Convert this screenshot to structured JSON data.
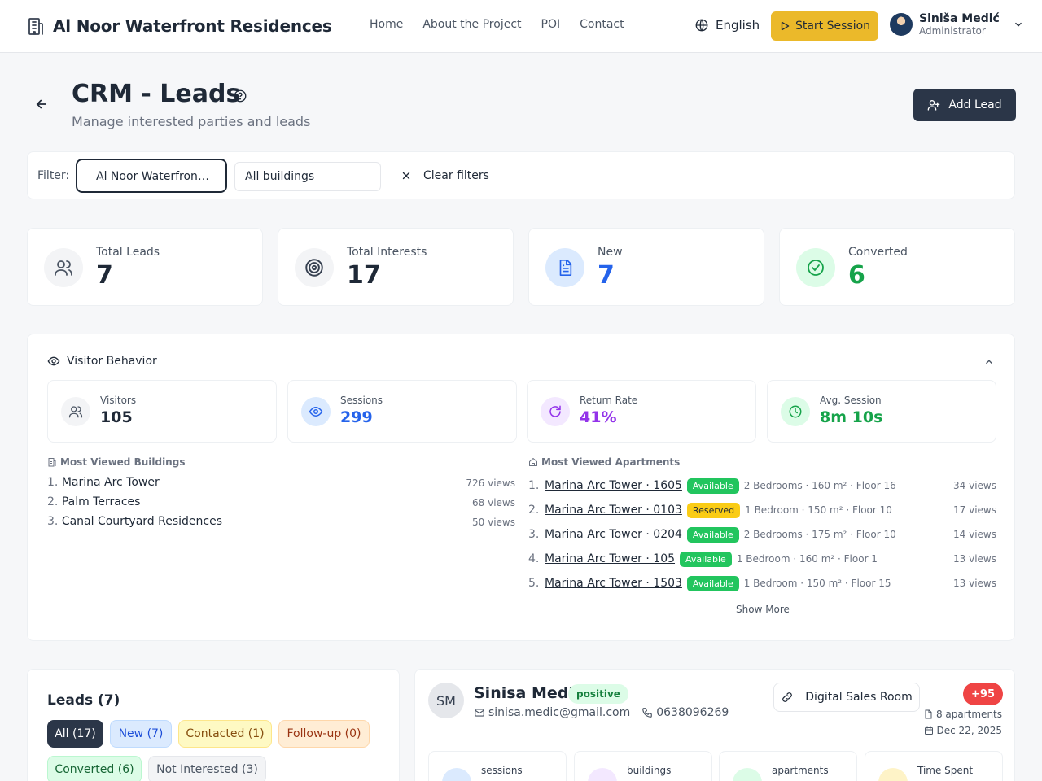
{
  "header": {
    "title": "Al Noor Waterfront Residences",
    "nav": [
      "Home",
      "About the Project",
      "POI",
      "Contact"
    ],
    "language": "English",
    "start_session": "Start Session",
    "user_name": "Siniša Medić",
    "user_role": "Administrator"
  },
  "page": {
    "title": "CRM - Leads",
    "subtitle": "Manage interested parties and leads",
    "add_lead": "Add Lead"
  },
  "filter": {
    "label": "Filter:",
    "project": "Al Noor Waterfront Residences",
    "buildings": "All buildings",
    "clear": "Clear filters"
  },
  "stats": [
    {
      "label": "Total Leads",
      "value": "7",
      "color": "#1f2937"
    },
    {
      "label": "Total Interests",
      "value": "17",
      "color": "#1f2937"
    },
    {
      "label": "New",
      "value": "7",
      "color": "#2563eb"
    },
    {
      "label": "Converted",
      "value": "6",
      "color": "#16a34a"
    }
  ],
  "visitor_behavior": {
    "title": "Visitor Behavior",
    "metrics": [
      {
        "label": "Visitors",
        "value": "105",
        "color": "#1f2937"
      },
      {
        "label": "Sessions",
        "value": "299",
        "color": "#2563eb"
      },
      {
        "label": "Return Rate",
        "value": "41%",
        "color": "#9333ea"
      },
      {
        "label": "Avg. Session",
        "value": "8m 10s",
        "color": "#16a34a"
      }
    ],
    "buildings_title": "Most Viewed Buildings",
    "buildings": [
      {
        "n": "1.",
        "name": "Marina Arc Tower",
        "views": "726 views"
      },
      {
        "n": "2.",
        "name": "Palm Terraces",
        "views": "68 views"
      },
      {
        "n": "3.",
        "name": "Canal Courtyard Residences",
        "views": "50 views"
      }
    ],
    "apartments_title": "Most Viewed Apartments",
    "apartments": [
      {
        "n": "1.",
        "name": "Marina Arc Tower · 1605",
        "status": "Available",
        "detail": "2 Bedrooms · 160 m² · Floor 16",
        "views": "34 views"
      },
      {
        "n": "2.",
        "name": "Marina Arc Tower · 0103",
        "status": "Reserved",
        "detail": "1 Bedroom · 150 m² · Floor 10",
        "views": "17 views"
      },
      {
        "n": "3.",
        "name": "Marina Arc Tower · 0204",
        "status": "Available",
        "detail": "2 Bedrooms · 175 m² · Floor 10",
        "views": "14 views"
      },
      {
        "n": "4.",
        "name": "Marina Arc Tower · 105",
        "status": "Available",
        "detail": "1 Bedroom · 160 m² · Floor 1",
        "views": "13 views"
      },
      {
        "n": "5.",
        "name": "Marina Arc Tower · 1503",
        "status": "Available",
        "detail": "1 Bedroom · 150 m² · Floor 15",
        "views": "13 views"
      }
    ],
    "show_more": "Show More"
  },
  "leads": {
    "title": "Leads (7)",
    "chips": [
      "All (17)",
      "New (7)",
      "Contacted (1)",
      "Follow-up (0)",
      "Converted (6)",
      "Not Interested (3)"
    ]
  },
  "lead_detail": {
    "initials": "SM",
    "name": "Sinisa Medic",
    "sentiment": "positive",
    "email": "sinisa.medic@gmail.com",
    "phone": "0638096269",
    "dsr": "Digital Sales Room",
    "score": "+95",
    "apartments": "8 apartments",
    "date": "Dec 22, 2025",
    "kpis": [
      "sessions",
      "buildings",
      "apartments",
      "Time Spent"
    ]
  }
}
